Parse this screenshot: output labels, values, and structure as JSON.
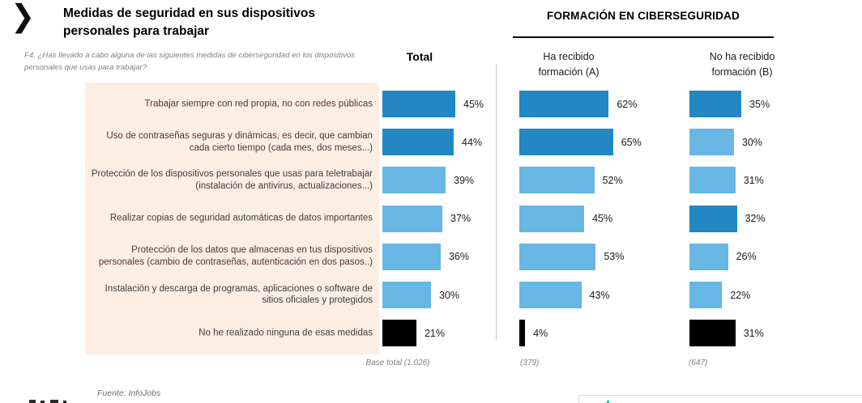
{
  "header": {
    "title": "Medidas de seguridad en sus dispositivos personales para trabajar",
    "question": "F4. ¿Has llevado a cabo alguna de las siguientes medidas de ciberseguridad en los dispositivos personales que usas para trabajar?"
  },
  "footer": {
    "source": "Fuente: InfoJobs"
  },
  "chart_data": {
    "type": "bar",
    "orientation": "horizontal",
    "title": "Medidas de seguridad en sus dispositivos personales para trabajar",
    "group_header": "FORMACIÓN EN CIBERSEGURIDAD",
    "value_suffix": "%",
    "categories": [
      "Trabajar siempre con red propia, no con redes públicas",
      "Uso de contraseñas seguras y dinámicas, es decir, que cambian cada cierto tiempo (cada mes, dos meses...)",
      "Protección de los dispositivos personales que usas para teletrabajar (instalación de antivirus, actualizaciones...)",
      "Realizar copias de seguridad automáticas de datos importantes",
      "Protección de los datos que almacenas en tus dispositivos personales (cambio de contraseñas, autenticación en dos pasos..)",
      "Instalación y descarga de programas, aplicaciones o software de sitios oficiales y protegidos",
      "No he realizado ninguna de esas medidas"
    ],
    "series": [
      {
        "name": "Total",
        "base_label": "Base total (1.026)",
        "values": [
          45,
          44,
          39,
          37,
          36,
          30,
          21
        ],
        "colors": [
          "dark",
          "dark",
          "light",
          "light",
          "light",
          "light",
          "black"
        ]
      },
      {
        "name": "Ha recibido formación (A)",
        "base_label": "(379)",
        "values": [
          62,
          65,
          52,
          45,
          53,
          43,
          4
        ],
        "colors": [
          "dark",
          "dark",
          "light",
          "light",
          "light",
          "light",
          "black"
        ]
      },
      {
        "name": "No ha recibido formación (B)",
        "base_label": "(647)",
        "values": [
          35,
          30,
          31,
          32,
          26,
          22,
          31
        ],
        "colors": [
          "dark",
          "light",
          "light",
          "dark",
          "light",
          "light",
          "black"
        ]
      }
    ],
    "palette": {
      "dark": "#2287c2",
      "light": "#68b6e3",
      "black": "#000000"
    },
    "panel_color": "#fdeee4",
    "legend_position": "none",
    "grid": false
  }
}
